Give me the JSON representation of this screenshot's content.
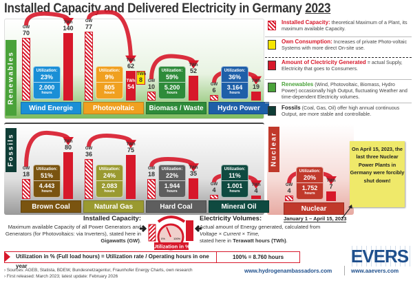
{
  "title": {
    "text": "Installed Capacity and Delivered Electricity in Germany",
    "year": "2023"
  },
  "units": {
    "gw": "GW",
    "twh": "TWh",
    "utilization": "Utilization:",
    "hours": "hours"
  },
  "colors": {
    "capacity": "#d7182a",
    "own_consumption": "#f5e600",
    "renewables": "#4aa23a",
    "fossils": "#0f3d36",
    "nuclear": "#c0392b"
  },
  "groups": {
    "renewables": "Renewables",
    "fossils": "Fossils",
    "nuclear": "Nuclear"
  },
  "plants": [
    {
      "id": "wind",
      "name": "Wind Energie",
      "group": "renewables",
      "gw": "70",
      "twh": "140",
      "util": "23%",
      "hours": "2.000",
      "color": "#1a8fd6",
      "icon": "wind-turbine-icon"
    },
    {
      "id": "pv",
      "name": "Photovoltaic",
      "group": "renewables",
      "gw": "77",
      "twh": "62",
      "twh_supplied": "54",
      "own_consumption": "8",
      "util": "9%",
      "hours": "805",
      "color": "#f0a020",
      "icon": "sun-solar-panel-icon"
    },
    {
      "id": "biomass",
      "name": "Biomass / Waste",
      "group": "renewables",
      "gw": "10",
      "twh": "52",
      "util": "59%",
      "hours": "5.200",
      "color": "#2e8b3a",
      "icon": "biogas-corn-icon"
    },
    {
      "id": "hydro",
      "name": "Hydro Power",
      "group": "renewables",
      "gw": "6",
      "twh": "19",
      "util": "36%",
      "hours": "3.164",
      "color": "#1e5fa8",
      "icon": "hydro-turbine-icon"
    },
    {
      "id": "brown-coal",
      "name": "Brown Coal",
      "group": "fossils",
      "gw": "18",
      "twh": "80",
      "util": "51%",
      "hours": "4.443",
      "color": "#7a5410",
      "icon": "excavator-icon"
    },
    {
      "id": "natural-gas",
      "name": "Natural Gas",
      "group": "fossils",
      "gw": "36",
      "twh": "75",
      "util": "24%",
      "hours": "2.083",
      "color": "#9a9a30",
      "icon": "gas-plant-icon"
    },
    {
      "id": "hard-coal",
      "name": "Hard Coal",
      "group": "fossils",
      "gw": "18",
      "twh": "35",
      "util": "22%",
      "hours": "1.944",
      "color": "#5e5e5e",
      "icon": "coal-mine-icon"
    },
    {
      "id": "mineral-oil",
      "name": "Mineral Oil",
      "group": "fossils",
      "gw": "4",
      "twh": "4",
      "util": "11%",
      "hours": "1.001",
      "color": "#0f4a40",
      "icon": "oil-rig-icon"
    },
    {
      "id": "nuclear",
      "name": "Nuclear",
      "group": "nuclear",
      "gw": "4",
      "twh": "7",
      "util": "20%",
      "hours": "1.752",
      "color": "#c0392b",
      "icon": "nuclear-plant-icon"
    }
  ],
  "legend": [
    {
      "title": "Installed Capacity:",
      "text": "theoretical Maximum of a Plant, its maximum available Capacity.",
      "color": "#d7182a",
      "kind": "striped"
    },
    {
      "title": "Own Consumption:",
      "text": "Increases of private Photo-voltaic Systems with more direct On-site use.",
      "color": "#f5e600",
      "kind": "solid"
    },
    {
      "title": "Amount of Clectricity Generated",
      "text": "= actual Supply, Electricity that goes to Consumers.",
      "color": "#d7182a",
      "kind": "solid"
    },
    {
      "title": "Renewables",
      "text": "(Wind, Photovoltaic, Biomass, Hydro Power) occasionally high Output, fluctuating Weather and time-dependent Electricity volumes.",
      "color": "#4aa23a",
      "kind": "solid"
    },
    {
      "title": "Fossils",
      "text": "(Coal, Gas, Oil) offer high annual continuous Output, are more stable and controllable.",
      "color": "#0f3d36",
      "kind": "solid"
    }
  ],
  "nuclear_note": "On April 15, 2023, the last three Nuclear Power Plants in Germany were forcibly shut down!",
  "nuclear_period": "January 1 – April 15, 2023",
  "explain": {
    "capacity_title": "Installed Capacity:",
    "capacity_text": "Maximum available Capacity of all Power Generators and Generators (for Photovoltaics: via Inverters), stated here in",
    "capacity_unit": "Gigawatts (GW)",
    "volume_title": "Electricity Volumes:",
    "volume_text": "Actual amount of Energy generated, calculated from",
    "volume_formula": "Voltage × Current × Time,",
    "volume_text2": "stated here in",
    "volume_unit": "Terawatt hours (TWh)",
    "gauge_label": "Utilization in %",
    "gauge_min": "0%",
    "gauge_max": "100%"
  },
  "formula": {
    "left": "Utilization in % (Full load hours)  =  Utilization rate / Operating hours in one year",
    "right": "100% = 8.760 hours"
  },
  "sources": [
    "Sources: AGEB, Statista, BDEW, Bundesnetzagentur, Fraunhofer Energy Charts, own research",
    "First released: March 2023; latest update: February 2026"
  ],
  "links": {
    "hydrogen": "www.hydrogenambassadors.com",
    "evers": "www.aaevers.com",
    "logo": "EVERS"
  }
}
